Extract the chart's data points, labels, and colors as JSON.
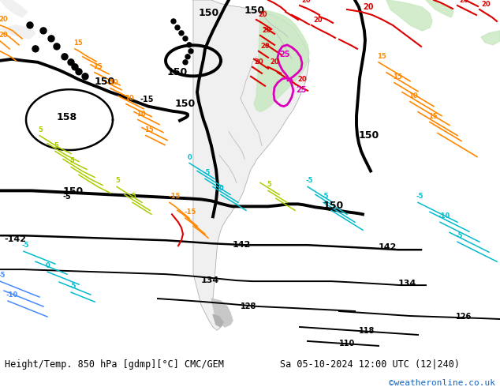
{
  "title_left": "Height/Temp. 850 hPa [gdmp][°C] CMC/GEM",
  "title_right": "Sa 05-10-2024 12:00 UTC (12|240)",
  "copyright": "©weatheronline.co.uk",
  "fig_width": 6.34,
  "fig_height": 4.9,
  "dpi": 100,
  "footer_bg": "#ffffff",
  "footer_text_color": "#000000",
  "copyright_color": "#1565c0",
  "ocean_color": "#d8d8d8",
  "land_color": "#f0f0f0",
  "green_color": "#c8e8c0",
  "gray_land": "#c8c8c8",
  "black_contour": "#000000",
  "red_isotherm": "#dd0000",
  "magenta_isotherm": "#dd00bb",
  "orange_isotherm": "#ff8800",
  "yellow_green_isotherm": "#aacc00",
  "cyan_isotherm": "#00bbcc",
  "blue_isotherm": "#4488ff"
}
